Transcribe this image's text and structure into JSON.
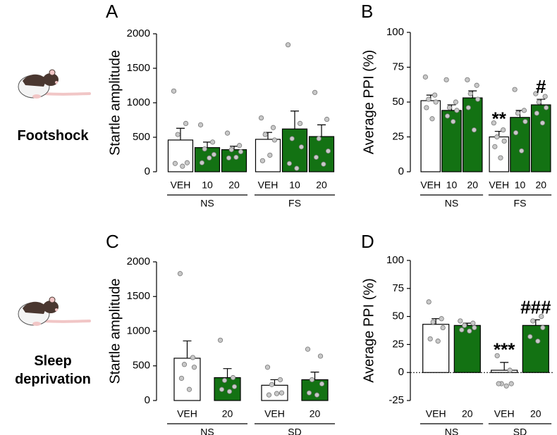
{
  "row_labels": [
    "Footshock",
    "Sleep deprivation"
  ],
  "chart_data": [
    {
      "type": "bar",
      "panel": "A",
      "ylabel": "Startle amplitude",
      "categories": [
        "VEH",
        "10",
        "20",
        "VEH",
        "10",
        "20"
      ],
      "groups": [
        "NS",
        "FS"
      ],
      "values": [
        460,
        350,
        320,
        470,
        620,
        510
      ],
      "errors": [
        170,
        80,
        50,
        100,
        260,
        170
      ],
      "points": [
        [
          1170,
          700,
          540,
          130,
          120,
          80
        ],
        [
          680,
          430,
          330,
          250,
          130,
          200
        ],
        [
          560,
          380,
          320,
          290,
          200,
          210
        ],
        [
          780,
          640,
          540,
          460,
          160,
          240
        ],
        [
          1840,
          700,
          480,
          360,
          120,
          50
        ],
        [
          1150,
          760,
          480,
          300,
          210,
          110
        ]
      ],
      "colors": [
        "#ffffff",
        "#137213",
        "#137213",
        "#ffffff",
        "#137213",
        "#137213"
      ],
      "annotations": [
        null,
        null,
        null,
        null,
        null,
        null
      ],
      "ylim": [
        0,
        2000
      ],
      "yticks": [
        0,
        500,
        1000,
        1500,
        2000
      ],
      "zero_line": false
    },
    {
      "type": "bar",
      "panel": "B",
      "ylabel": "Average PPI (%)",
      "categories": [
        "VEH",
        "10",
        "20",
        "VEH",
        "10",
        "20"
      ],
      "groups": [
        "NS",
        "FS"
      ],
      "values": [
        51,
        44,
        53,
        25,
        39,
        48
      ],
      "errors": [
        4,
        4,
        5,
        4,
        5,
        4
      ],
      "points": [
        [
          68,
          55,
          52,
          50,
          46,
          38
        ],
        [
          66,
          50,
          46,
          44,
          40,
          36
        ],
        [
          66,
          62,
          56,
          52,
          46,
          30
        ],
        [
          35,
          30,
          25,
          22,
          18,
          10
        ],
        [
          59,
          44,
          42,
          36,
          28,
          15
        ],
        [
          56,
          54,
          50,
          46,
          42,
          35
        ]
      ],
      "colors": [
        "#ffffff",
        "#137213",
        "#137213",
        "#ffffff",
        "#137213",
        "#137213"
      ],
      "annotations": [
        null,
        null,
        null,
        "**",
        null,
        "#"
      ],
      "ylim": [
        0,
        100
      ],
      "yticks": [
        0,
        25,
        50,
        75,
        100
      ],
      "zero_line": false
    },
    {
      "type": "bar",
      "panel": "C",
      "ylabel": "Startle amplitude",
      "categories": [
        "VEH",
        "20",
        "VEH",
        "20"
      ],
      "groups": [
        "NS",
        "SD"
      ],
      "values": [
        610,
        330,
        220,
        300
      ],
      "errors": [
        250,
        130,
        80,
        110
      ],
      "points": [
        [
          1830,
          620,
          520,
          480,
          320,
          160
        ],
        [
          870,
          330,
          290,
          200,
          160,
          130
        ],
        [
          480,
          300,
          230,
          110,
          80,
          100
        ],
        [
          740,
          640,
          300,
          240,
          110,
          80
        ]
      ],
      "colors": [
        "#ffffff",
        "#137213",
        "#ffffff",
        "#137213"
      ],
      "annotations": [
        null,
        null,
        null,
        null
      ],
      "ylim": [
        0,
        2000
      ],
      "yticks": [
        0,
        500,
        1000,
        1500,
        2000
      ],
      "zero_line": false
    },
    {
      "type": "bar",
      "panel": "D",
      "ylabel": "Average PPI (%)",
      "categories": [
        "VEH",
        "20",
        "VEH",
        "20"
      ],
      "groups": [
        "NS",
        "SD"
      ],
      "values": [
        43,
        42,
        2,
        42
      ],
      "errors": [
        5,
        2,
        7,
        5
      ],
      "points": [
        [
          63,
          48,
          45,
          40,
          30,
          28
        ],
        [
          46,
          44,
          42,
          40,
          38,
          37
        ],
        [
          15,
          2,
          -10,
          -10,
          -10,
          -12
        ],
        [
          58,
          50,
          46,
          40,
          32,
          28
        ]
      ],
      "colors": [
        "#ffffff",
        "#137213",
        "#ffffff",
        "#137213"
      ],
      "annotations": [
        null,
        null,
        "***",
        "###"
      ],
      "ylim": [
        -25,
        100
      ],
      "yticks": [
        -25,
        0,
        25,
        50,
        75,
        100
      ],
      "zero_line": true
    }
  ]
}
